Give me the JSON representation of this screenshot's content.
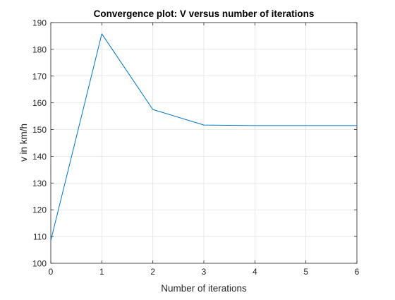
{
  "chart_data": {
    "type": "line",
    "title": "Convergence plot: V versus number of iterations",
    "xlabel": "Number of iterations",
    "ylabel": "v in km/h",
    "xlim": [
      0,
      6
    ],
    "ylim": [
      100,
      190
    ],
    "xticks": [
      0,
      1,
      2,
      3,
      4,
      5,
      6
    ],
    "yticks": [
      100,
      110,
      120,
      130,
      140,
      150,
      160,
      170,
      180,
      190
    ],
    "grid": true,
    "series": [
      {
        "x": [
          0,
          1,
          2,
          3,
          4,
          5,
          6
        ],
        "values": [
          108.5,
          185.8,
          157.5,
          151.7,
          151.5,
          151.5,
          151.5
        ]
      }
    ],
    "colors": {
      "line": "#0072BD",
      "axis": "#262626",
      "grid": "#dfdfdf",
      "text": "#262626",
      "title": "#000000"
    }
  }
}
